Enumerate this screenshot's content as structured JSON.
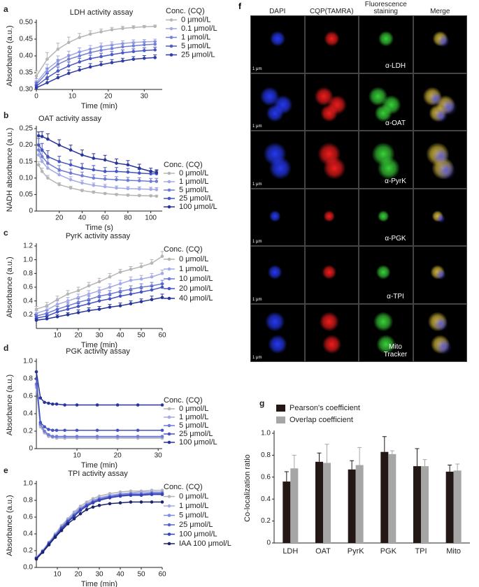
{
  "chart_data": [
    {
      "type": "line",
      "panel_label": "a",
      "title": "LDH activity assay",
      "x_label": "Time (min)",
      "y_label": "Absorbance (a.u.)",
      "legend_title": "Conc. (CQ)",
      "x": [
        0,
        3,
        6,
        9,
        12,
        15,
        18,
        21,
        24,
        27,
        30,
        33
      ],
      "xlim": [
        0,
        35
      ],
      "xticks": [
        0,
        10,
        20,
        30
      ],
      "ylim": [
        0.3,
        0.5
      ],
      "yticks": [
        {
          "value": 0.3,
          "label": "0.30"
        },
        0.35,
        {
          "value": 0.4,
          "label": "0.40"
        },
        0.45,
        {
          "value": 0.5,
          "label": "0.50"
        }
      ],
      "series": [
        {
          "name": "0 μmol/L",
          "color": "#b5b5b5",
          "values": [
            0.34,
            0.39,
            0.42,
            0.44,
            0.455,
            0.465,
            0.472,
            0.478,
            0.482,
            0.485,
            0.487,
            0.488
          ],
          "errors": [
            0.015,
            0.02,
            0.018,
            0.016,
            0.012,
            0.01,
            0.008,
            0.007,
            0.006,
            0.005,
            0.004,
            0.004
          ]
        },
        {
          "name": "0.1 μmol/L",
          "color": "#a3aae6",
          "values": [
            0.32,
            0.36,
            0.385,
            0.4,
            0.412,
            0.42,
            0.428,
            0.433,
            0.437,
            0.44,
            0.442,
            0.443
          ],
          "errors": [
            0.012,
            0.015,
            0.015,
            0.014,
            0.012,
            0.011,
            0.01,
            0.009,
            0.008,
            0.008,
            0.007,
            0.007
          ]
        },
        {
          "name": "1 μmol/L",
          "color": "#7480d6",
          "values": [
            0.315,
            0.35,
            0.375,
            0.39,
            0.4,
            0.41,
            0.417,
            0.422,
            0.427,
            0.43,
            0.433,
            0.435
          ],
          "errors": [
            0.01,
            0.014,
            0.014,
            0.013,
            0.012,
            0.011,
            0.01,
            0.009,
            0.009,
            0.008,
            0.008,
            0.008
          ]
        },
        {
          "name": "5 μmol/L",
          "color": "#4b5ac6",
          "values": [
            0.31,
            0.335,
            0.355,
            0.37,
            0.382,
            0.392,
            0.398,
            0.404,
            0.409,
            0.413,
            0.416,
            0.418
          ],
          "errors": [
            0.01,
            0.012,
            0.012,
            0.012,
            0.011,
            0.01,
            0.01,
            0.009,
            0.009,
            0.008,
            0.008,
            0.008
          ]
        },
        {
          "name": "25 μmol/L",
          "color": "#2f3ca3",
          "values": [
            0.305,
            0.32,
            0.335,
            0.348,
            0.358,
            0.367,
            0.374,
            0.38,
            0.385,
            0.39,
            0.393,
            0.395
          ],
          "errors": [
            0.008,
            0.01,
            0.01,
            0.01,
            0.01,
            0.01,
            0.009,
            0.009,
            0.008,
            0.008,
            0.008,
            0.008
          ]
        }
      ]
    },
    {
      "type": "line",
      "panel_label": "b",
      "title": "OAT activity assay",
      "x_label": "Time (s)",
      "y_label": "NADH absorbance (a.u.)",
      "legend_title": "Conc. (CQ)",
      "x": [
        2,
        5,
        10,
        20,
        30,
        40,
        50,
        60,
        70,
        80,
        90,
        100,
        105
      ],
      "xlim": [
        0,
        110
      ],
      "xticks": [
        20,
        40,
        60,
        80,
        100
      ],
      "ylim": [
        0,
        0.25
      ],
      "yticks": [
        0,
        0.05,
        {
          "value": 0.1,
          "label": "0.10"
        },
        0.15,
        {
          "value": 0.2,
          "label": "0.20"
        },
        0.25
      ],
      "series": [
        {
          "name": "0 μmol/L",
          "color": "#b5b5b5",
          "values": [
            0.14,
            0.12,
            0.1,
            0.08,
            0.07,
            0.062,
            0.057,
            0.053,
            0.05,
            0.048,
            0.047,
            0.046,
            0.045
          ],
          "errors": [
            0.01,
            0.01,
            0.008,
            0.006,
            0.005,
            0.004,
            0.004,
            0.003,
            0.003,
            0.003,
            0.003,
            0.003,
            0.003
          ]
        },
        {
          "name": "1 μmol/L",
          "color": "#a3aae6",
          "values": [
            0.17,
            0.15,
            0.13,
            0.11,
            0.095,
            0.085,
            0.078,
            0.074,
            0.07,
            0.068,
            0.067,
            0.066,
            0.065
          ],
          "errors": [
            0.015,
            0.014,
            0.012,
            0.01,
            0.009,
            0.008,
            0.007,
            0.007,
            0.006,
            0.006,
            0.006,
            0.006,
            0.006
          ]
        },
        {
          "name": "5 μmol/L",
          "color": "#6f7bd4",
          "values": [
            0.185,
            0.165,
            0.145,
            0.125,
            0.115,
            0.107,
            0.1,
            0.097,
            0.095,
            0.093,
            0.092,
            0.09,
            0.09
          ],
          "errors": [
            0.018,
            0.016,
            0.015,
            0.013,
            0.012,
            0.011,
            0.01,
            0.01,
            0.009,
            0.009,
            0.009,
            0.009,
            0.009
          ]
        },
        {
          "name": "25 μmol/L",
          "color": "#4453c2",
          "values": [
            0.2,
            0.185,
            0.165,
            0.15,
            0.14,
            0.13,
            0.125,
            0.12,
            0.12,
            0.118,
            0.115,
            0.113,
            0.113
          ],
          "errors": [
            0.02,
            0.02,
            0.018,
            0.016,
            0.015,
            0.014,
            0.013,
            0.012,
            0.012,
            0.011,
            0.011,
            0.01,
            0.01
          ]
        },
        {
          "name": "100 μmol/L",
          "color": "#27349a",
          "values": [
            0.228,
            0.226,
            0.218,
            0.2,
            0.185,
            0.17,
            0.16,
            0.155,
            0.145,
            0.14,
            0.13,
            0.12,
            0.117
          ],
          "errors": [
            0.012,
            0.015,
            0.016,
            0.016,
            0.015,
            0.015,
            0.014,
            0.014,
            0.013,
            0.013,
            0.012,
            0.01,
            0.008
          ]
        }
      ]
    },
    {
      "type": "line",
      "panel_label": "c",
      "title": "PyrK activity assay",
      "x_label": "Time (min)",
      "y_label": "Absorbance (a.u.)",
      "legend_title": "Conc. (CQ)",
      "x": [
        0,
        5,
        10,
        15,
        20,
        25,
        30,
        35,
        40,
        45,
        50,
        55,
        60
      ],
      "xlim": [
        0,
        60
      ],
      "xticks": [
        10,
        20,
        30,
        40,
        50,
        60
      ],
      "ylim": [
        0,
        1.2
      ],
      "yticks": [
        0.2,
        0.4,
        0.6,
        0.8,
        {
          "value": 1,
          "label": "1.0"
        },
        1.2
      ],
      "series": [
        {
          "name": "0 μmol/L",
          "color": "#b5b5b5",
          "values": [
            0.28,
            0.33,
            0.42,
            0.5,
            0.55,
            0.62,
            0.68,
            0.75,
            0.82,
            0.86,
            0.9,
            0.95,
            1.05
          ],
          "errors": [
            0.04,
            0.05,
            0.05,
            0.05,
            0.05,
            0.05,
            0.05,
            0.05,
            0.04,
            0.04,
            0.05,
            0.05,
            0.07
          ]
        },
        {
          "name": "1 μmol/L",
          "color": "#a3aae6",
          "values": [
            0.22,
            0.27,
            0.35,
            0.4,
            0.45,
            0.5,
            0.55,
            0.6,
            0.65,
            0.7,
            0.72,
            0.75,
            0.8
          ],
          "errors": [
            0.04,
            0.04,
            0.05,
            0.05,
            0.05,
            0.05,
            0.05,
            0.05,
            0.05,
            0.05,
            0.05,
            0.05,
            0.05
          ]
        },
        {
          "name": "10 μmol/L",
          "color": "#6f7bd4",
          "values": [
            0.18,
            0.22,
            0.28,
            0.33,
            0.38,
            0.42,
            0.47,
            0.5,
            0.54,
            0.57,
            0.6,
            0.62,
            0.65
          ],
          "errors": [
            0.03,
            0.04,
            0.04,
            0.04,
            0.05,
            0.05,
            0.05,
            0.05,
            0.05,
            0.05,
            0.05,
            0.05,
            0.05
          ]
        },
        {
          "name": "20 μmol/L",
          "color": "#4453c2",
          "values": [
            0.15,
            0.18,
            0.24,
            0.28,
            0.32,
            0.36,
            0.4,
            0.43,
            0.47,
            0.5,
            0.53,
            0.56,
            0.6
          ],
          "errors": [
            0.03,
            0.03,
            0.04,
            0.04,
            0.04,
            0.04,
            0.05,
            0.05,
            0.05,
            0.05,
            0.05,
            0.05,
            0.05
          ]
        },
        {
          "name": "40 μmol/L",
          "color": "#27349a",
          "values": [
            0.12,
            0.14,
            0.17,
            0.2,
            0.23,
            0.26,
            0.28,
            0.31,
            0.33,
            0.36,
            0.39,
            0.42,
            0.45
          ],
          "errors": [
            0.02,
            0.03,
            0.03,
            0.03,
            0.04,
            0.04,
            0.04,
            0.04,
            0.04,
            0.04,
            0.04,
            0.05,
            0.05
          ]
        }
      ]
    },
    {
      "type": "line",
      "panel_label": "d",
      "title": "PGK activity assay",
      "x_label": "Time (min)",
      "y_label": "Absorbance (a.u.)",
      "legend_title": "Conc. (CQ)",
      "x": [
        0,
        1,
        2,
        3,
        4,
        5,
        7,
        10,
        15,
        20,
        25,
        31
      ],
      "xlim": [
        0,
        31
      ],
      "xticks": [
        10,
        20,
        30
      ],
      "ylim": [
        0,
        1
      ],
      "yticks": [
        0,
        0.2,
        0.4,
        0.6,
        0.8,
        {
          "value": 1,
          "label": "1.0"
        }
      ],
      "series": [
        {
          "name": "0 μmol/L",
          "color": "#b5b5b5",
          "values": [
            0.7,
            0.25,
            0.18,
            0.14,
            0.13,
            0.12,
            0.12,
            0.12,
            0.12,
            0.12,
            0.12,
            0.12
          ]
        },
        {
          "name": "1 μmol/L",
          "color": "#a3aae6",
          "values": [
            0.72,
            0.27,
            0.19,
            0.15,
            0.14,
            0.13,
            0.13,
            0.13,
            0.13,
            0.13,
            0.13,
            0.13
          ]
        },
        {
          "name": "5 μmol/L",
          "color": "#6f7bd4",
          "values": [
            0.74,
            0.28,
            0.2,
            0.16,
            0.14,
            0.14,
            0.14,
            0.14,
            0.14,
            0.14,
            0.14,
            0.14
          ]
        },
        {
          "name": "25 μmol/L",
          "color": "#4453c2",
          "values": [
            0.8,
            0.3,
            0.25,
            0.22,
            0.21,
            0.21,
            0.21,
            0.21,
            0.21,
            0.21,
            0.21,
            0.21
          ]
        },
        {
          "name": "100 μmol/L",
          "color": "#27349a",
          "values": [
            0.88,
            0.58,
            0.53,
            0.52,
            0.51,
            0.51,
            0.5,
            0.5,
            0.5,
            0.5,
            0.5,
            0.5
          ]
        }
      ]
    },
    {
      "type": "line",
      "panel_label": "e",
      "title": "TPI activity assay",
      "x_label": "Time (min)",
      "y_label": "Absorbance (a.u.)",
      "legend_title": "Conc. (CQ)",
      "x": [
        0,
        3,
        6,
        9,
        12,
        15,
        18,
        21,
        24,
        27,
        30,
        35,
        40,
        45,
        50,
        55,
        60
      ],
      "xlim": [
        0,
        60
      ],
      "xticks": [
        10,
        20,
        30,
        40,
        50,
        60
      ],
      "ylim": [
        0,
        1
      ],
      "yticks": [
        {
          "value": 0,
          "label": "0.0"
        },
        0.2,
        0.4,
        0.6,
        0.8,
        {
          "value": 1,
          "label": "1.0"
        }
      ],
      "series": [
        {
          "name": "0 μmol/L",
          "color": "#b5b5b5",
          "values": [
            0.12,
            0.2,
            0.3,
            0.4,
            0.5,
            0.58,
            0.66,
            0.73,
            0.78,
            0.82,
            0.85,
            0.88,
            0.9,
            0.91,
            0.91,
            0.92,
            0.92
          ]
        },
        {
          "name": "1 μmol/L",
          "color": "#a3aae6",
          "values": [
            0.12,
            0.2,
            0.3,
            0.39,
            0.49,
            0.57,
            0.65,
            0.71,
            0.76,
            0.8,
            0.83,
            0.86,
            0.88,
            0.89,
            0.9,
            0.9,
            0.9
          ]
        },
        {
          "name": "5 μmol/L",
          "color": "#7f8ada",
          "values": [
            0.11,
            0.19,
            0.29,
            0.38,
            0.48,
            0.56,
            0.63,
            0.7,
            0.75,
            0.79,
            0.82,
            0.85,
            0.87,
            0.88,
            0.88,
            0.89,
            0.89
          ]
        },
        {
          "name": "25 μmol/L",
          "color": "#5562c9",
          "values": [
            0.11,
            0.19,
            0.29,
            0.38,
            0.47,
            0.55,
            0.62,
            0.69,
            0.74,
            0.78,
            0.81,
            0.84,
            0.86,
            0.87,
            0.87,
            0.88,
            0.88
          ]
        },
        {
          "name": "100 μmol/L",
          "color": "#3442b5",
          "values": [
            0.11,
            0.19,
            0.28,
            0.37,
            0.46,
            0.54,
            0.61,
            0.68,
            0.73,
            0.77,
            0.8,
            0.83,
            0.85,
            0.86,
            0.86,
            0.87,
            0.87
          ]
        },
        {
          "name": "IAA 100 μmol/L",
          "color": "#1c2468",
          "values": [
            0.1,
            0.18,
            0.27,
            0.36,
            0.44,
            0.52,
            0.58,
            0.64,
            0.69,
            0.72,
            0.74,
            0.76,
            0.77,
            0.78,
            0.78,
            0.78,
            0.78
          ]
        }
      ]
    },
    {
      "type": "bar",
      "panel_label": "g",
      "y_label": "Co-localization ratio",
      "categories": [
        "LDH",
        "OAT",
        "PyrK",
        "PGK",
        "TPI",
        "Mito"
      ],
      "ylim": [
        0,
        1
      ],
      "yticks": [
        0,
        0.2,
        0.4,
        0.6,
        0.8,
        {
          "value": 1,
          "label": "1.0"
        }
      ],
      "series": [
        {
          "name": "Pearson's coefficient",
          "color": "#231815",
          "values": [
            0.56,
            0.74,
            0.67,
            0.83,
            0.7,
            0.65
          ],
          "errors": [
            0.09,
            0.08,
            0.08,
            0.14,
            0.16,
            0.06
          ]
        },
        {
          "name": "Overlap coefficient",
          "color": "#a6a6a6",
          "values": [
            0.68,
            0.73,
            0.71,
            0.81,
            0.7,
            0.66
          ],
          "errors": [
            0.12,
            0.17,
            0.16,
            0.03,
            0.06,
            0.06
          ]
        }
      ]
    }
  ],
  "microscopy": {
    "panel_label": "f",
    "columns": [
      "DAPI",
      "CQP(TAMRA)",
      "Fluorescence staining",
      "Merge"
    ],
    "rows": [
      "α-LDH",
      "α-OAT",
      "α-PyrK",
      "α-PGK",
      "α-TPI",
      "Mito Tracker"
    ],
    "scale_bar": "1 μm"
  }
}
